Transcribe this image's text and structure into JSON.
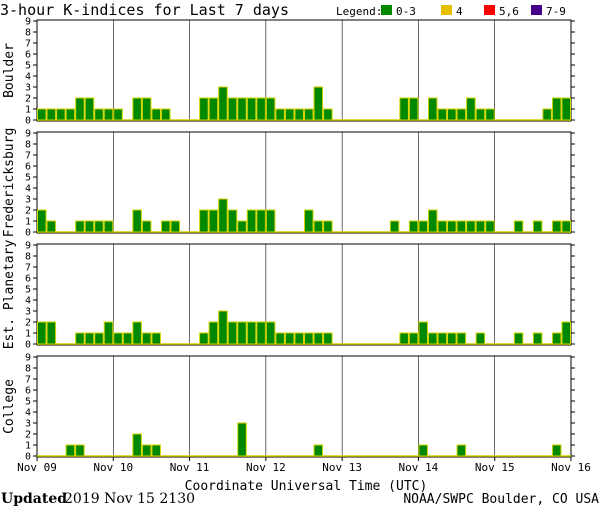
{
  "chart_data": {
    "type": "bar",
    "title": "3-hour K-indices for Last 7 days",
    "legend": {
      "label": "Legend:",
      "placement": "top-right",
      "items": [
        {
          "label": "0-3",
          "color": "#008800"
        },
        {
          "label": "4",
          "color": "#e6c000"
        },
        {
          "label": "5,6",
          "color": "#ff0000"
        },
        {
          "label": "7-9",
          "color": "#440088"
        }
      ]
    },
    "bar_edge_color": "#d4d400",
    "x_tick_labels": [
      "Nov 09",
      "Nov 10",
      "Nov 11",
      "Nov 12",
      "Nov 13",
      "Nov 14",
      "Nov 15",
      "Nov 16"
    ],
    "xlabel": "Coordinate Universal Time (UTC)",
    "ylim": [
      0,
      9
    ],
    "y_ticks": [
      0,
      1,
      2,
      3,
      4,
      5,
      6,
      7,
      8,
      9
    ],
    "intervals_per_day": 8,
    "panels": [
      {
        "name": "Boulder",
        "values": [
          1,
          1,
          1,
          1,
          2,
          2,
          1,
          1,
          1,
          0,
          2,
          2,
          1,
          1,
          0,
          0,
          0,
          2,
          2,
          3,
          2,
          2,
          2,
          2,
          2,
          1,
          1,
          1,
          1,
          3,
          1,
          0,
          0,
          0,
          0,
          0,
          0,
          0,
          2,
          2,
          0,
          2,
          1,
          1,
          1,
          2,
          1,
          1,
          0,
          0,
          0,
          0,
          0,
          1,
          2,
          2
        ]
      },
      {
        "name": "Fredericksburg",
        "values": [
          2,
          1,
          0,
          0,
          1,
          1,
          1,
          1,
          0,
          0,
          2,
          1,
          0,
          1,
          1,
          0,
          0,
          2,
          2,
          3,
          2,
          1,
          2,
          2,
          2,
          0,
          0,
          0,
          2,
          1,
          1,
          0,
          0,
          0,
          0,
          0,
          0,
          1,
          0,
          1,
          1,
          2,
          1,
          1,
          1,
          1,
          1,
          1,
          0,
          0,
          1,
          0,
          1,
          0,
          1,
          1
        ]
      },
      {
        "name": "Est. Planetary",
        "values": [
          2,
          2,
          0,
          0,
          1,
          1,
          1,
          2,
          1,
          1,
          2,
          1,
          1,
          0,
          0,
          0,
          0,
          1,
          2,
          3,
          2,
          2,
          2,
          2,
          2,
          1,
          1,
          1,
          1,
          1,
          1,
          0,
          0,
          0,
          0,
          0,
          0,
          0,
          1,
          1,
          2,
          1,
          1,
          1,
          1,
          0,
          1,
          0,
          0,
          0,
          1,
          0,
          1,
          0,
          1,
          2
        ]
      },
      {
        "name": "College",
        "values": [
          0,
          0,
          0,
          1,
          1,
          0,
          0,
          0,
          0,
          0,
          2,
          1,
          1,
          0,
          0,
          0,
          0,
          0,
          0,
          0,
          0,
          3,
          0,
          0,
          0,
          0,
          0,
          0,
          0,
          1,
          0,
          0,
          0,
          0,
          0,
          0,
          0,
          0,
          0,
          0,
          1,
          0,
          0,
          0,
          1,
          0,
          0,
          0,
          0,
          0,
          0,
          0,
          0,
          0,
          1,
          0
        ]
      }
    ]
  },
  "footer": {
    "updated_label": "Updated",
    "updated_value": "2019 Nov 15 2130",
    "source": "NOAA/SWPC Boulder, CO USA"
  }
}
